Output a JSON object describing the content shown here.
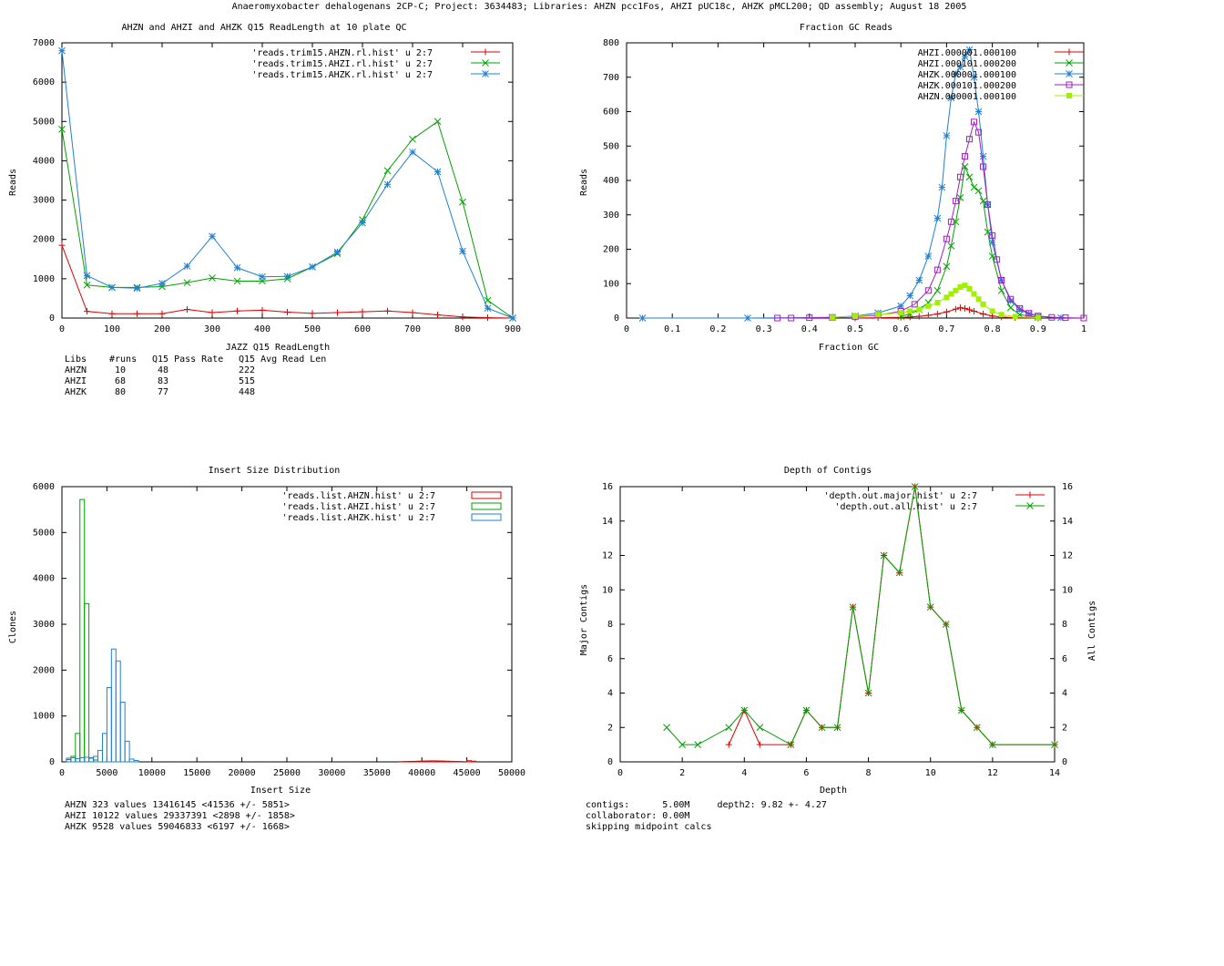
{
  "page_title": "Anaeromyxobacter dehalogenans 2CP-C; Project: 3634483; Libraries: AHZN pcc1Fos, AHZI pUC18c, AHZK pMCL200; QD assembly; August 18 2005",
  "chart_data": [
    {
      "type": "line",
      "title": "AHZN and AHZI and AHZK Q15 ReadLength at 10 plate QC",
      "xlabel": "JAZZ Q15 ReadLength",
      "ylabel": "Reads",
      "xlim": [
        0,
        900
      ],
      "ylim": [
        0,
        7000
      ],
      "xticks": [
        0,
        100,
        200,
        300,
        400,
        500,
        600,
        700,
        800,
        900
      ],
      "yticks": [
        0,
        1000,
        2000,
        3000,
        4000,
        5000,
        6000,
        7000
      ],
      "legend_position": "top-right",
      "series": [
        {
          "name": "'reads.trim15.AHZN.rl.hist' u 2:7",
          "color": "#e00000",
          "marker": "plus",
          "x": [
            0,
            50,
            100,
            150,
            200,
            250,
            300,
            350,
            400,
            450,
            500,
            550,
            600,
            650,
            700,
            750,
            800,
            850,
            900
          ],
          "y": [
            1850,
            170,
            110,
            110,
            110,
            220,
            140,
            180,
            200,
            150,
            120,
            140,
            160,
            180,
            140,
            80,
            30,
            10,
            0
          ]
        },
        {
          "name": "'reads.trim15.AHZI.rl.hist' u 2:7",
          "color": "#00a000",
          "marker": "x",
          "x": [
            0,
            50,
            100,
            150,
            200,
            250,
            300,
            350,
            400,
            450,
            500,
            550,
            600,
            650,
            700,
            750,
            800,
            850,
            900
          ],
          "y": [
            4800,
            840,
            780,
            780,
            800,
            900,
            1020,
            940,
            940,
            1000,
            1300,
            1640,
            2500,
            3750,
            4550,
            5000,
            2950,
            450,
            0
          ]
        },
        {
          "name": "'reads.trim15.AHZK.rl.hist' u 2:7",
          "color": "#2080d0",
          "marker": "star",
          "x": [
            0,
            50,
            100,
            150,
            200,
            250,
            300,
            350,
            400,
            450,
            500,
            550,
            600,
            650,
            700,
            750,
            800,
            850,
            900
          ],
          "y": [
            6800,
            1080,
            780,
            760,
            880,
            1320,
            2080,
            1280,
            1050,
            1060,
            1300,
            1680,
            2420,
            3400,
            4220,
            3720,
            1700,
            250,
            0
          ]
        }
      ],
      "stats_table": {
        "header": [
          "Libs",
          "#runs",
          "Q15 Pass Rate",
          "Q15 Avg Read Len"
        ],
        "rows": [
          [
            "AHZN",
            "10",
            "48",
            "222"
          ],
          [
            "AHZI",
            "68",
            "83",
            "515"
          ],
          [
            "AHZK",
            "80",
            "77",
            "448"
          ]
        ]
      }
    },
    {
      "type": "scatter",
      "title": "Fraction GC Reads",
      "xlabel": "Fraction GC",
      "ylabel": "Reads",
      "xlim": [
        0,
        1
      ],
      "ylim": [
        0,
        800
      ],
      "xticks": [
        0,
        0.1,
        0.2,
        0.3,
        0.4,
        0.5,
        0.6,
        0.7,
        0.8,
        0.9,
        1
      ],
      "yticks": [
        0,
        100,
        200,
        300,
        400,
        500,
        600,
        700,
        800
      ],
      "legend_position": "top-right",
      "series": [
        {
          "name": "AHZI.000001.000100",
          "color": "#e00000",
          "marker": "plus",
          "x": [
            0.5,
            0.55,
            0.6,
            0.62,
            0.64,
            0.66,
            0.68,
            0.7,
            0.72,
            0.73,
            0.74,
            0.75,
            0.76,
            0.78,
            0.8,
            0.82,
            0.85,
            0.9
          ],
          "y": [
            0,
            1,
            2,
            3,
            5,
            8,
            12,
            18,
            26,
            30,
            28,
            24,
            20,
            12,
            6,
            3,
            1,
            0
          ]
        },
        {
          "name": "AHZI.000101.000200",
          "color": "#00a000",
          "marker": "x",
          "x": [
            0.6,
            0.62,
            0.64,
            0.66,
            0.68,
            0.7,
            0.71,
            0.72,
            0.73,
            0.74,
            0.75,
            0.76,
            0.77,
            0.78,
            0.79,
            0.8,
            0.82,
            0.84,
            0.86,
            0.9
          ],
          "y": [
            5,
            12,
            25,
            45,
            80,
            150,
            210,
            280,
            350,
            440,
            410,
            380,
            370,
            340,
            250,
            180,
            80,
            30,
            10,
            2
          ]
        },
        {
          "name": "AHZK.000001.000100",
          "color": "#2080d0",
          "marker": "star",
          "x": [
            0.035,
            0.265,
            0.45,
            0.5,
            0.55,
            0.6,
            0.62,
            0.64,
            0.66,
            0.68,
            0.69,
            0.7,
            0.71,
            0.72,
            0.73,
            0.74,
            0.75,
            0.76,
            0.77,
            0.78,
            0.79,
            0.8,
            0.82,
            0.84,
            0.86,
            0.88,
            0.9,
            0.95
          ],
          "y": [
            0,
            0,
            2,
            6,
            15,
            35,
            65,
            110,
            180,
            290,
            380,
            530,
            640,
            710,
            730,
            760,
            780,
            700,
            600,
            470,
            330,
            220,
            110,
            50,
            25,
            12,
            5,
            1
          ]
        },
        {
          "name": "AHZK.000101.000200",
          "color": "#a020c0",
          "marker": "square",
          "x": [
            0.33,
            0.36,
            0.4,
            0.45,
            0.5,
            0.55,
            0.6,
            0.63,
            0.66,
            0.68,
            0.7,
            0.71,
            0.72,
            0.73,
            0.74,
            0.75,
            0.76,
            0.77,
            0.78,
            0.79,
            0.8,
            0.81,
            0.82,
            0.84,
            0.86,
            0.88,
            0.9,
            0.93,
            0.96,
            1.0
          ],
          "y": [
            0,
            0,
            1,
            2,
            4,
            8,
            20,
            40,
            80,
            140,
            230,
            280,
            340,
            410,
            470,
            520,
            570,
            540,
            440,
            330,
            240,
            170,
            110,
            55,
            28,
            14,
            6,
            2,
            1,
            0
          ]
        },
        {
          "name": "AHZN.000001.000100",
          "color": "#a0f000",
          "marker": "filled-square",
          "x": [
            0.45,
            0.5,
            0.55,
            0.6,
            0.62,
            0.64,
            0.66,
            0.68,
            0.7,
            0.71,
            0.72,
            0.73,
            0.74,
            0.75,
            0.76,
            0.77,
            0.78,
            0.8,
            0.82,
            0.85,
            0.9
          ],
          "y": [
            2,
            5,
            10,
            15,
            20,
            25,
            35,
            45,
            60,
            70,
            80,
            90,
            95,
            85,
            70,
            55,
            40,
            20,
            10,
            4,
            1
          ]
        }
      ]
    },
    {
      "type": "bar",
      "title": "Insert Size Distribution",
      "xlabel": "Insert Size",
      "ylabel": "Clones",
      "xlim": [
        0,
        50000
      ],
      "ylim": [
        0,
        6000
      ],
      "xticks": [
        0,
        5000,
        10000,
        15000,
        20000,
        25000,
        30000,
        35000,
        40000,
        45000,
        50000
      ],
      "yticks": [
        0,
        1000,
        2000,
        3000,
        4000,
        5000,
        6000
      ],
      "legend_position": "top-right",
      "bin_width": 500,
      "series": [
        {
          "name": "'reads.list.AHZN.hist' u 2:7",
          "color": "#e00000",
          "x": [
            37500,
            38000,
            38500,
            39000,
            39500,
            40000,
            40500,
            41000,
            41500,
            42000,
            42500,
            43000,
            43500,
            44000,
            45000,
            45500
          ],
          "y": [
            5,
            8,
            10,
            12,
            15,
            18,
            20,
            22,
            20,
            18,
            15,
            12,
            10,
            8,
            25,
            15
          ]
        },
        {
          "name": "'reads.list.AHZI.hist' u 2:7",
          "color": "#00a000",
          "x": [
            500,
            1000,
            1500,
            2000,
            2500,
            3000,
            3500
          ],
          "y": [
            50,
            120,
            620,
            5720,
            3450,
            90,
            40
          ]
        },
        {
          "name": "'reads.list.AHZK.hist' u 2:7",
          "color": "#2080d0",
          "x": [
            500,
            1000,
            1500,
            2000,
            2500,
            3000,
            3500,
            4000,
            4500,
            5000,
            5500,
            6000,
            6500,
            7000,
            7500,
            8000
          ],
          "y": [
            80,
            90,
            70,
            90,
            100,
            80,
            120,
            250,
            620,
            1620,
            2460,
            2200,
            1300,
            450,
            60,
            30
          ]
        }
      ],
      "stats_lines": [
        "AHZN 323 values 13416145 <41536 +/- 5851>",
        "AHZI 10122 values 29337391 <2898 +/- 1858>",
        "AHZK 9528 values 59046833 <6197 +/- 1668>"
      ]
    },
    {
      "type": "line",
      "title": "Depth of Contigs",
      "xlabel": "Depth",
      "ylabel": "Major Contigs",
      "y2label": "All Contigs",
      "xlim": [
        0,
        14
      ],
      "ylim": [
        0,
        16
      ],
      "xticks": [
        0,
        2,
        4,
        6,
        8,
        10,
        12,
        14
      ],
      "yticks": [
        0,
        2,
        4,
        6,
        8,
        10,
        12,
        14,
        16
      ],
      "legend_position": "top-right",
      "series": [
        {
          "name": "'depth.out.major.hist' u 2:7",
          "color": "#e00000",
          "marker": "plus",
          "x": [
            3.5,
            4,
            4.5,
            5.5,
            6,
            6.5,
            7,
            7.5,
            8,
            8.5,
            9,
            9.5,
            10,
            10.5,
            11,
            11.5,
            12,
            14
          ],
          "y": [
            1,
            3,
            1,
            1,
            3,
            2,
            2,
            9,
            4,
            12,
            11,
            16,
            9,
            8,
            3,
            2,
            1,
            1
          ]
        },
        {
          "name": "'depth.out.all.hist' u 2:7",
          "color": "#00a000",
          "marker": "x",
          "x": [
            1.5,
            2,
            2.5,
            3.5,
            4,
            4.5,
            5.5,
            6,
            6.5,
            7,
            7.5,
            8,
            8.5,
            9,
            9.5,
            10,
            10.5,
            11,
            11.5,
            12,
            14
          ],
          "y": [
            2,
            1,
            1,
            2,
            3,
            2,
            1,
            3,
            2,
            2,
            9,
            4,
            12,
            11,
            16,
            9,
            8,
            3,
            2,
            1,
            1
          ]
        }
      ],
      "stats_lines": [
        "contigs:      5.00M     depth2: 9.82 +- 4.27",
        "collaborator: 0.00M",
        "skipping midpoint calcs"
      ]
    }
  ]
}
